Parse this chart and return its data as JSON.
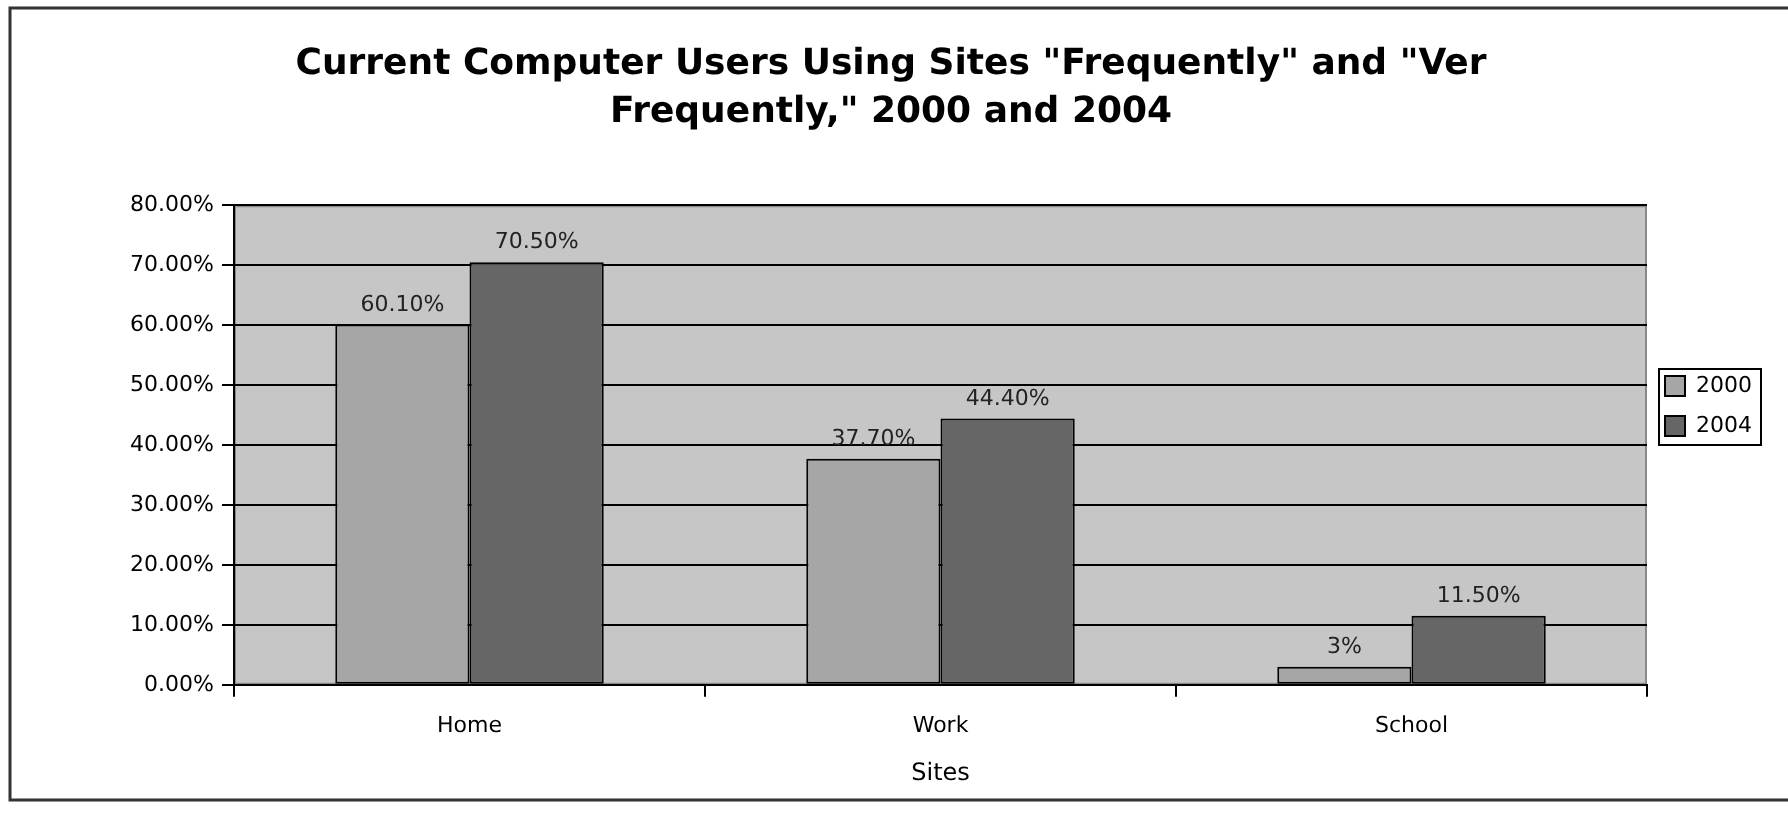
{
  "chart_data": {
    "type": "bar",
    "title": "Current Computer Users Using Sites \"Frequently\" and \"Ver Frequently,\" 2000 and 2004",
    "xlabel": "Sites",
    "categories": [
      "Home",
      "Work",
      "School"
    ],
    "series": [
      {
        "name": "2000",
        "color": "#a6a6a6",
        "values": [
          60.1,
          37.7,
          3
        ],
        "value_labels": [
          "60.10%",
          "37.70%",
          "3%"
        ]
      },
      {
        "name": "2004",
        "color": "#666666",
        "values": [
          70.5,
          44.4,
          11.5
        ],
        "value_labels": [
          "70.50%",
          "44.40%",
          "11.50%"
        ]
      }
    ],
    "ylim": [
      0,
      80
    ],
    "yticks": [
      {
        "value": 0,
        "label": "0.00%"
      },
      {
        "value": 10,
        "label": "10.00%"
      },
      {
        "value": 20,
        "label": "20.00%"
      },
      {
        "value": 30,
        "label": "30.00%"
      },
      {
        "value": 40,
        "label": "40.00%"
      },
      {
        "value": 50,
        "label": "50.00%"
      },
      {
        "value": 60,
        "label": "60.00%"
      },
      {
        "value": 70,
        "label": "70.00%"
      },
      {
        "value": 80,
        "label": "80.00%"
      }
    ],
    "grid": "y",
    "legend": "right"
  }
}
